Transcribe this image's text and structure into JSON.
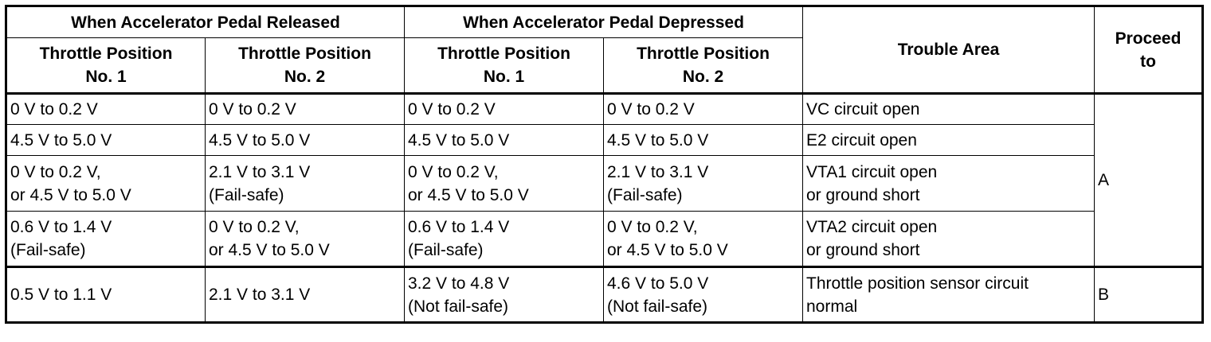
{
  "header": {
    "released": "When Accelerator Pedal Released",
    "depressed": "When Accelerator Pedal Depressed",
    "tp1": [
      "Throttle Position",
      "No. 1"
    ],
    "tp2": [
      "Throttle Position",
      "No. 2"
    ],
    "trouble_area": "Trouble Area",
    "proceed_to": [
      "Proceed",
      "to"
    ]
  },
  "rows": [
    {
      "rel_tp1": [
        "0 V to 0.2 V"
      ],
      "rel_tp2": [
        "0 V to 0.2 V"
      ],
      "dep_tp1": [
        "0 V to 0.2 V"
      ],
      "dep_tp2": [
        "0 V to 0.2 V"
      ],
      "trouble": [
        "VC circuit open"
      ]
    },
    {
      "rel_tp1": [
        "4.5 V to 5.0 V"
      ],
      "rel_tp2": [
        "4.5 V to 5.0 V"
      ],
      "dep_tp1": [
        "4.5 V to 5.0 V"
      ],
      "dep_tp2": [
        "4.5 V to 5.0 V"
      ],
      "trouble": [
        "E2 circuit open"
      ]
    },
    {
      "rel_tp1": [
        "0 V to 0.2 V,",
        "or 4.5 V to 5.0 V"
      ],
      "rel_tp2": [
        "2.1 V to 3.1 V",
        "(Fail-safe)"
      ],
      "dep_tp1": [
        "0 V to 0.2 V,",
        "or 4.5 V to 5.0 V"
      ],
      "dep_tp2": [
        "2.1 V to 3.1 V",
        "(Fail-safe)"
      ],
      "trouble": [
        "VTA1 circuit open",
        "or ground short"
      ]
    },
    {
      "rel_tp1": [
        "0.6 V to 1.4 V",
        "(Fail-safe)"
      ],
      "rel_tp2": [
        "0 V to 0.2 V,",
        "or 4.5 V to 5.0 V"
      ],
      "dep_tp1": [
        "0.6 V to 1.4 V",
        "(Fail-safe)"
      ],
      "dep_tp2": [
        "0 V to 0.2 V,",
        "or 4.5 V to 5.0 V"
      ],
      "trouble": [
        "VTA2 circuit open",
        "or ground short"
      ]
    },
    {
      "rel_tp1": [
        "0.5 V to 1.1 V"
      ],
      "rel_tp2": [
        "2.1 V to 3.1 V"
      ],
      "dep_tp1": [
        "3.2 V to 4.8 V",
        "(Not fail-safe)"
      ],
      "dep_tp2": [
        "4.6 V to 5.0 V",
        "(Not fail-safe)"
      ],
      "trouble": [
        "Throttle position sensor circuit",
        "normal"
      ]
    }
  ],
  "proceed": {
    "a": "A",
    "b": "B"
  }
}
